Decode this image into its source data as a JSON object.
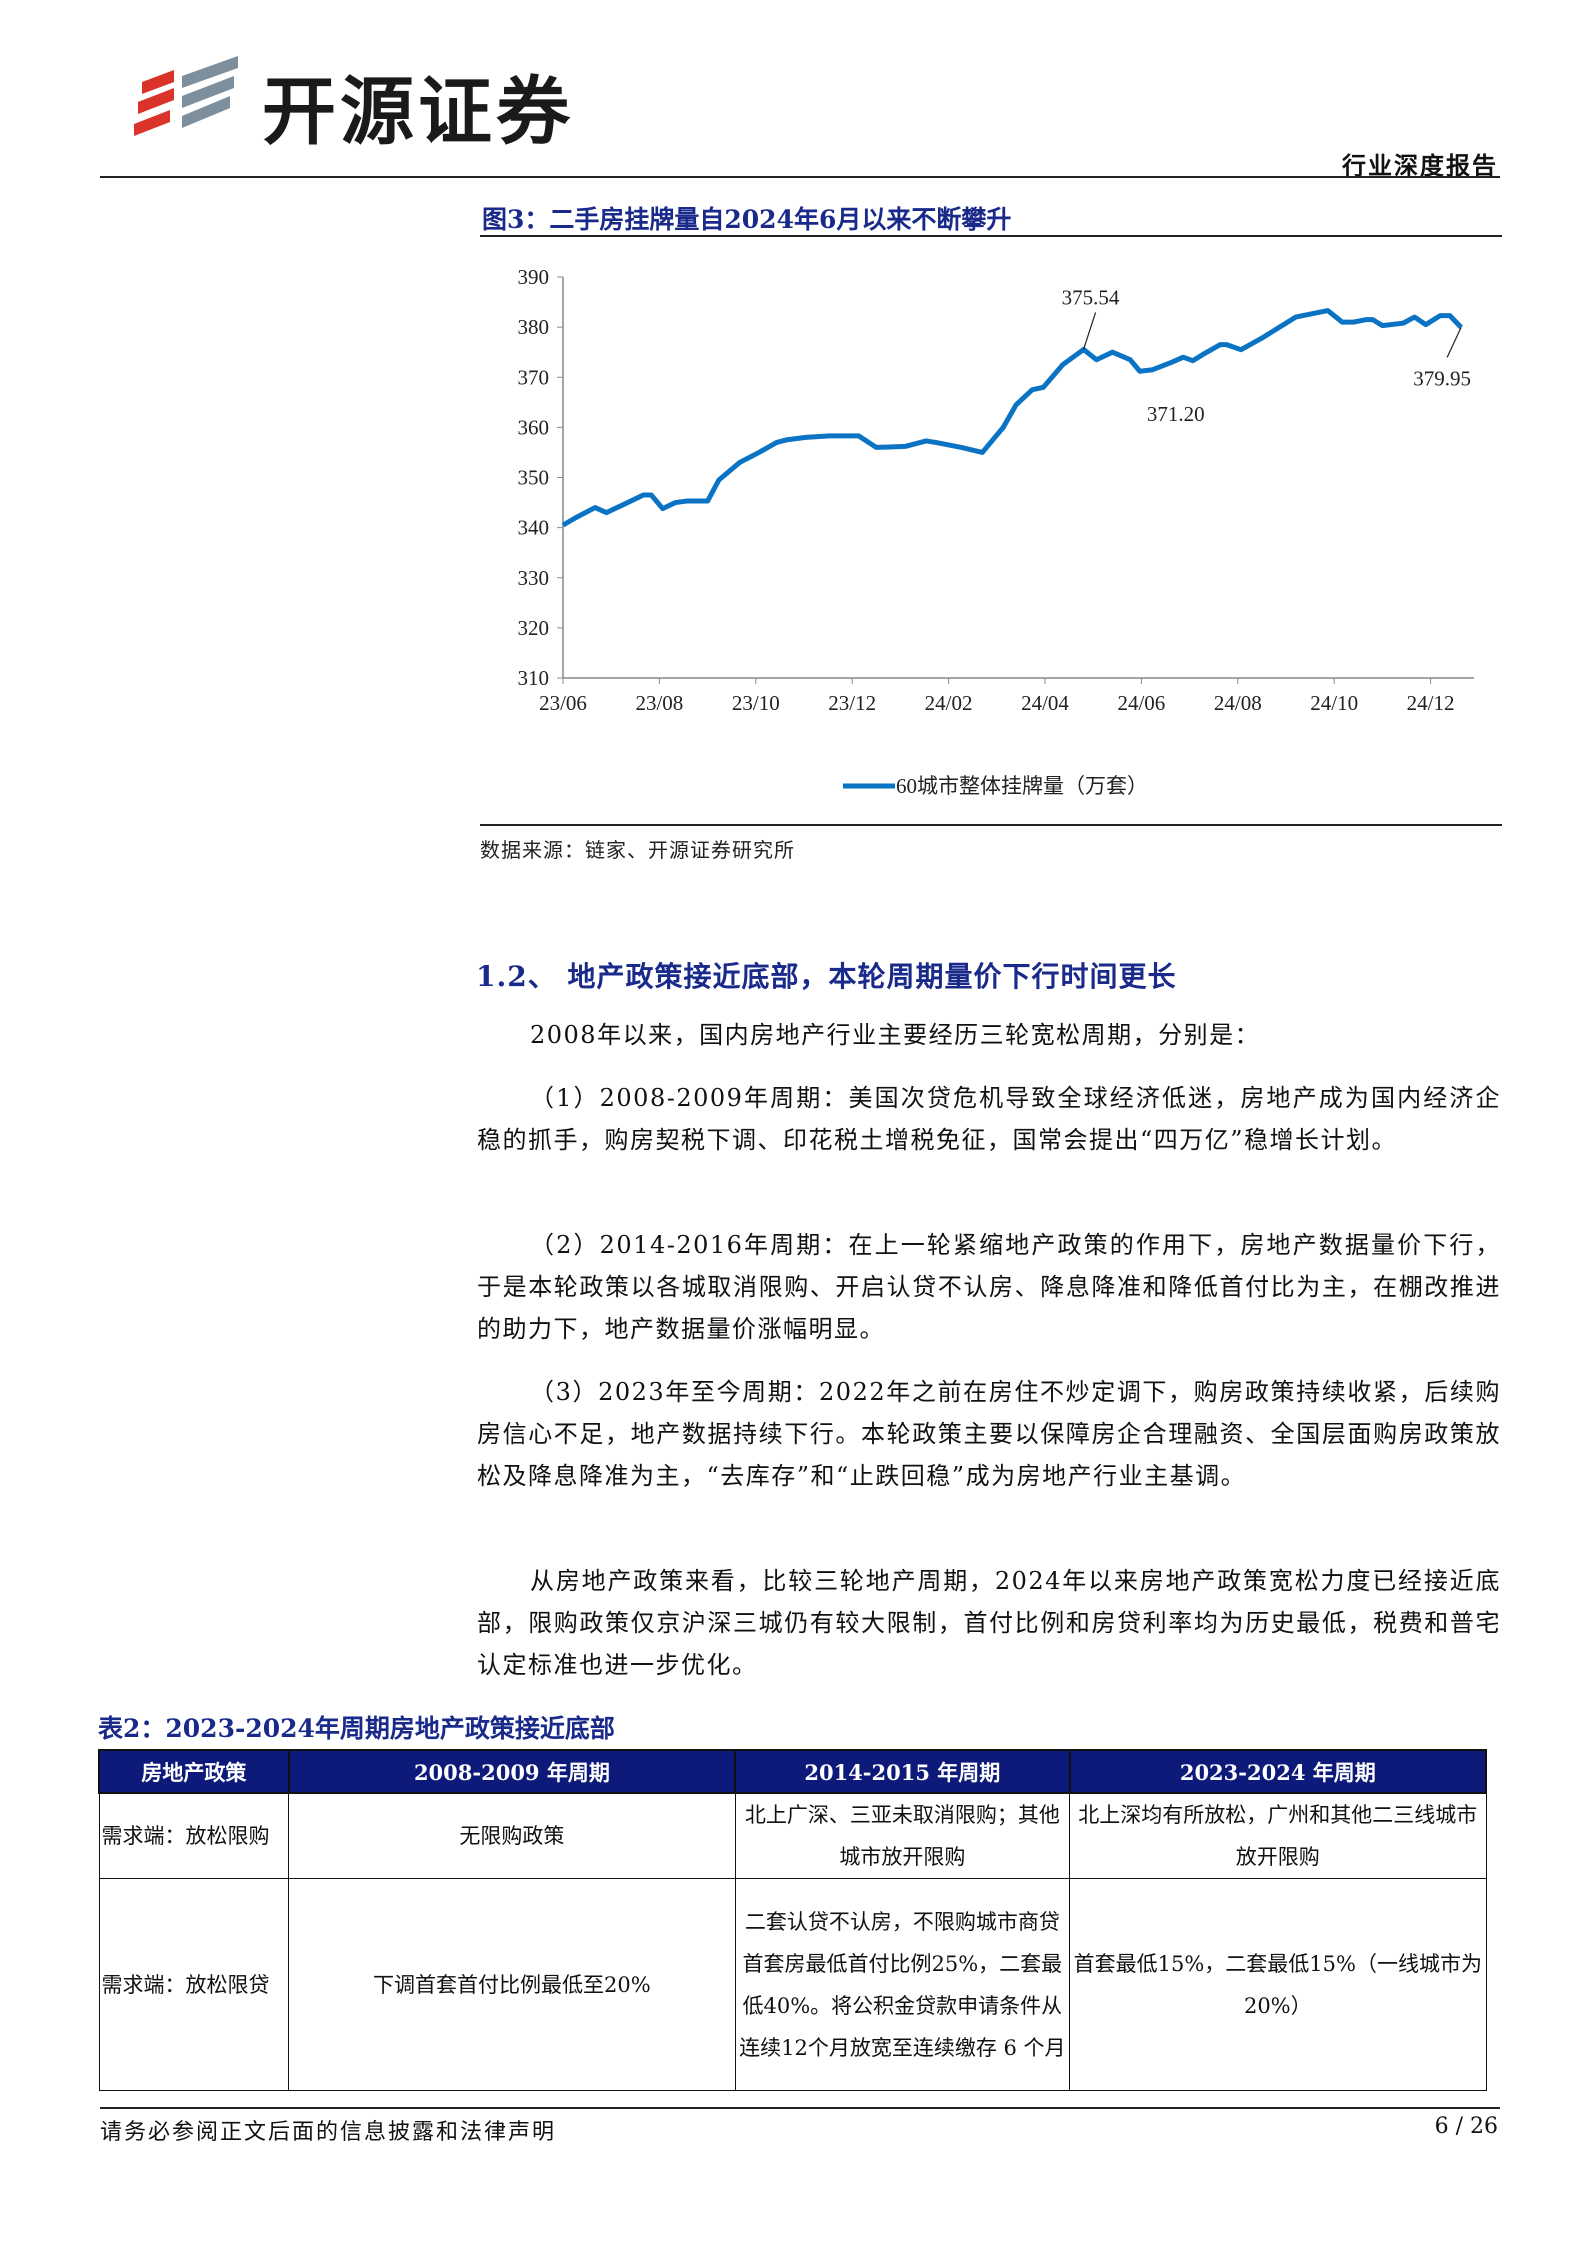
{
  "header": {
    "brand": "开源证券",
    "report_type": "行业深度报告"
  },
  "figure": {
    "title": "图3：二手房挂牌量自2024年6月以来不断攀升",
    "source": "数据来源：链家、开源证券研究所"
  },
  "chart_data": {
    "type": "line",
    "ylim": [
      310,
      390
    ],
    "yticks": [
      "310",
      "320",
      "330",
      "340",
      "350",
      "360",
      "370",
      "380",
      "390"
    ],
    "xticks": [
      "23/06",
      "23/08",
      "23/10",
      "23/12",
      "24/02",
      "24/04",
      "24/06",
      "24/08",
      "24/10",
      "24/12"
    ],
    "grid": false,
    "legend_position": "bottom",
    "line_color": "#0a73c4",
    "series": [
      {
        "name": "60城市整体挂牌量（万套）",
        "points": [
          [
            "2023-06-01",
            340.5
          ],
          [
            "2023-06-09",
            342
          ],
          [
            "2023-06-21",
            344
          ],
          [
            "2023-06-28",
            343
          ],
          [
            "2023-07-08",
            344.5
          ],
          [
            "2023-07-21",
            346.5
          ],
          [
            "2023-07-26",
            346.5
          ],
          [
            "2023-08-03",
            343.8
          ],
          [
            "2023-08-11",
            345
          ],
          [
            "2023-08-18",
            345.3
          ],
          [
            "2023-09-01",
            345.3
          ],
          [
            "2023-09-08",
            349.5
          ],
          [
            "2023-09-21",
            353
          ],
          [
            "2023-10-03",
            355
          ],
          [
            "2023-10-14",
            357
          ],
          [
            "2023-10-20",
            357.5
          ],
          [
            "2023-11-02",
            358
          ],
          [
            "2023-11-17",
            358.3
          ],
          [
            "2023-12-05",
            358.3
          ],
          [
            "2023-12-16",
            356
          ],
          [
            "2024-01-04",
            356.2
          ],
          [
            "2024-01-17",
            357.3
          ],
          [
            "2024-01-23",
            357
          ],
          [
            "2024-02-09",
            356
          ],
          [
            "2024-02-22",
            355
          ],
          [
            "2024-03-05",
            360
          ],
          [
            "2024-03-13",
            364.5
          ],
          [
            "2024-03-23",
            367.5
          ],
          [
            "2024-03-30",
            368
          ],
          [
            "2024-04-12",
            372.5
          ],
          [
            "2024-04-25",
            375.54
          ],
          [
            "2024-05-03",
            373.5
          ],
          [
            "2024-05-13",
            375
          ],
          [
            "2024-05-24",
            373.5
          ],
          [
            "2024-05-30",
            371.2
          ],
          [
            "2024-06-08",
            371.5
          ],
          [
            "2024-06-20",
            373
          ],
          [
            "2024-06-27",
            374
          ],
          [
            "2024-07-03",
            373.3
          ],
          [
            "2024-07-09",
            374.5
          ],
          [
            "2024-07-20",
            376.5
          ],
          [
            "2024-07-24",
            376.5
          ],
          [
            "2024-08-03",
            375.5
          ],
          [
            "2024-08-17",
            378
          ],
          [
            "2024-09-07",
            382
          ],
          [
            "2024-09-27",
            383.3
          ],
          [
            "2024-10-06",
            381
          ],
          [
            "2024-10-13",
            381
          ],
          [
            "2024-10-21",
            381.5
          ],
          [
            "2024-10-25",
            381.5
          ],
          [
            "2024-11-01",
            380.3
          ],
          [
            "2024-11-14",
            380.8
          ],
          [
            "2024-11-21",
            382
          ],
          [
            "2024-11-28",
            380.5
          ],
          [
            "2024-12-07",
            382.3
          ],
          [
            "2024-12-13",
            382.3
          ],
          [
            "2024-12-20",
            379.95
          ]
        ]
      }
    ],
    "annotations": [
      {
        "label": "375.54",
        "x": "2024-04-25",
        "y": 375.54
      },
      {
        "label": "371.20",
        "x": "2024-05-30",
        "y": 371.2
      },
      {
        "label": "379.95",
        "x": "2024-12-20",
        "y": 379.95
      }
    ]
  },
  "section": {
    "heading": "1.2、 地产政策接近底部，本轮周期量价下行时间更长",
    "paragraphs": [
      "2008年以来，国内房地产行业主要经历三轮宽松周期，分别是：",
      "（1）2008-2009年周期：美国次贷危机导致全球经济低迷，房地产成为国内经济企稳的抓手，购房契税下调、印花税土增税免征，国常会提出“四万亿”稳增长计划。",
      "（2）2014-2016年周期：在上一轮紧缩地产政策的作用下，房地产数据量价下行，于是本轮政策以各城取消限购、开启认贷不认房、降息降准和降低首付比为主，在棚改推进的助力下，地产数据量价涨幅明显。",
      "（3）2023年至今周期：2022年之前在房住不炒定调下，购房政策持续收紧，后续购房信心不足，地产数据持续下行。本轮政策主要以保障房企合理融资、全国层面购房政策放松及降息降准为主，“去库存”和“止跌回稳”成为房地产行业主基调。",
      "从房地产政策来看，比较三轮地产周期，2024年以来房地产政策宽松力度已经接近底部，限购政策仅京沪深三城仍有较大限制，首付比例和房贷利率均为历史最低，税费和普宅认定标准也进一步优化。"
    ]
  },
  "table": {
    "title": "表2：2023-2024年周期房地产政策接近底部",
    "headers": [
      "房地产政策",
      "2008-2009 年周期",
      "2014-2015 年周期",
      "2023-2024 年周期"
    ],
    "rows": [
      [
        "需求端：放松限购",
        "无限购政策",
        "北上广深、三亚未取消限购；其他城市放开限购",
        "北上深均有所放松，广州和其他二三线城市放开限购"
      ],
      [
        "需求端：放松限贷",
        "下调首套首付比例最低至20%",
        "二套认贷不认房，不限购城市商贷首套房最低首付比例25%，二套最低40%。将公积金贷款申请条件从连续12个月放宽至连续缴存 6 个月",
        "首套最低15%，二套最低15%（一线城市为20%）"
      ]
    ]
  },
  "footer": {
    "disclaimer": "请务必参阅正文后面的信息披露和法律声明",
    "page": "6 / 26"
  }
}
